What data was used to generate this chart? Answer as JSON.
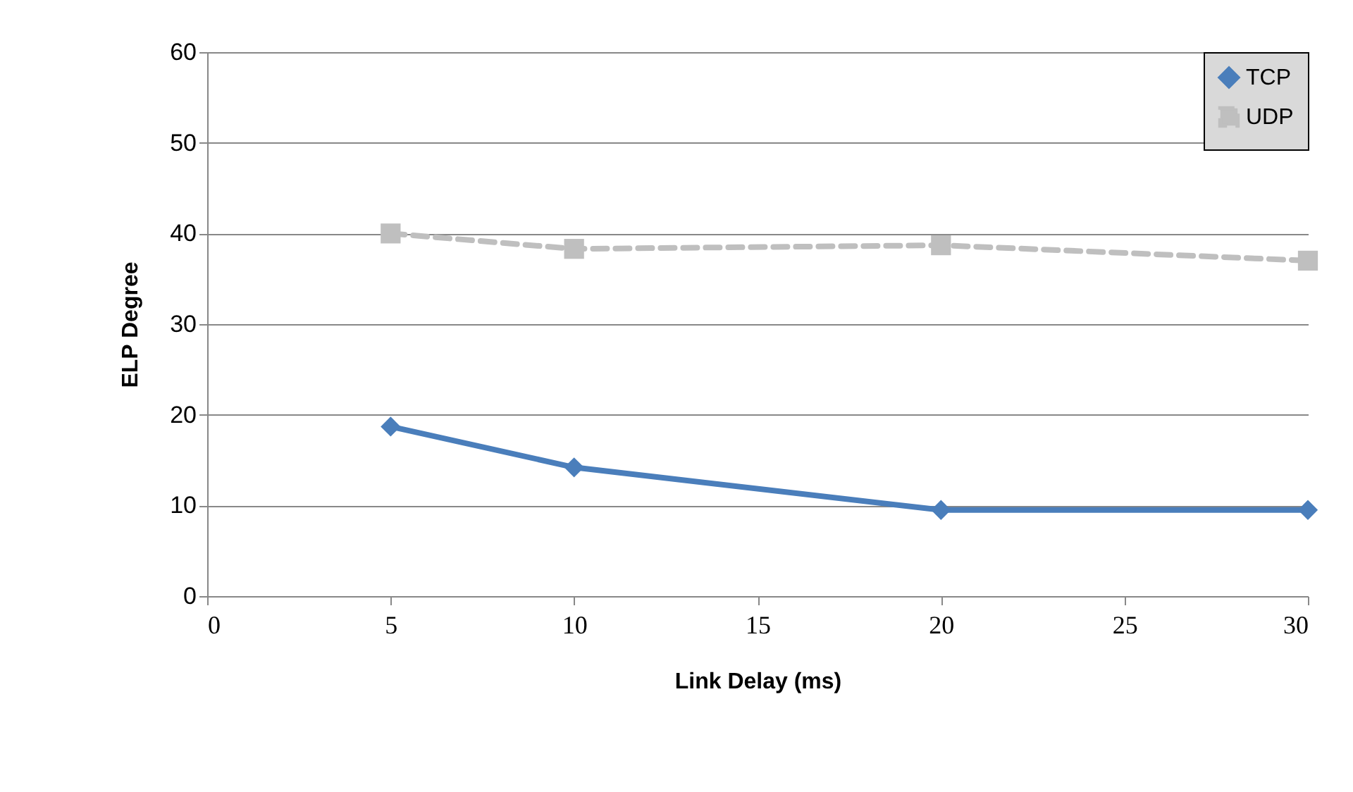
{
  "chart_data": {
    "type": "line",
    "xlabel": "Link Delay (ms)",
    "ylabel": "ELP Degree",
    "x": [
      5,
      10,
      20,
      30
    ],
    "series": [
      {
        "name": "TCP",
        "color": "#4a7ebb",
        "values": [
          18.7,
          14.2,
          9.5,
          9.5
        ],
        "marker": "diamond",
        "line_style": "solid"
      },
      {
        "name": "UDP",
        "color": "#bfbfbf",
        "values": [
          40.0,
          38.3,
          38.7,
          37.0
        ],
        "marker": "square",
        "line_style": "dashed"
      }
    ],
    "xlim": [
      0,
      30
    ],
    "xticks": [
      0,
      5,
      10,
      15,
      20,
      25,
      30
    ],
    "ylim": [
      0,
      60
    ],
    "yticks": [
      0,
      10,
      20,
      30,
      40,
      50,
      60
    ],
    "grid": "y",
    "legend": "top right"
  }
}
